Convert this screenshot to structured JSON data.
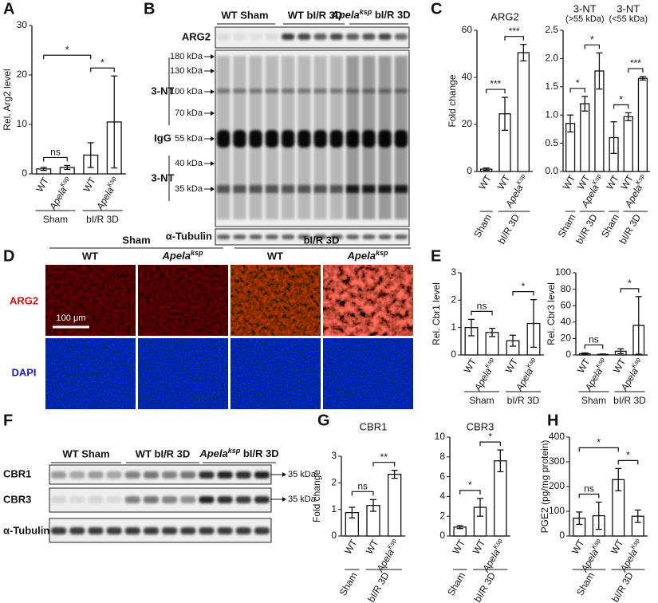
{
  "panel_letters": [
    "A",
    "B",
    "C",
    "D",
    "E",
    "F",
    "G",
    "H"
  ],
  "chart_data": [
    {
      "type": "bar",
      "y_label": "Rel. Arg2 level",
      "categories": [
        "WT",
        "Apela",
        "WT",
        "Apela"
      ],
      "category_superscripts": [
        null,
        "Ksp",
        null,
        "Ksp"
      ],
      "groups": [
        {
          "label": "Sham",
          "from": 0,
          "to": 1
        },
        {
          "label": "bI/R 3D",
          "from": 2,
          "to": 3
        }
      ],
      "values": [
        1.0,
        1.3,
        3.8,
        10.5
      ],
      "errors": [
        0.3,
        0.4,
        2.5,
        9.3
      ],
      "ylim": [
        0,
        30
      ],
      "yticks": [
        0,
        10,
        20,
        30
      ],
      "comparisons": [
        {
          "label": "ns",
          "from": 0,
          "to": 1
        },
        {
          "label": "*",
          "from": 2,
          "to": 3
        },
        {
          "label": "*",
          "from": 0,
          "to": 2
        }
      ]
    },
    {
      "type": "bar",
      "title": "ARG2",
      "y_label": "Fold change",
      "categories": [
        "WT",
        "WT",
        "Apela"
      ],
      "category_superscripts": [
        null,
        null,
        "Ksp"
      ],
      "groups": [
        {
          "label": "Sham",
          "from": 0,
          "to": 0
        },
        {
          "label": "bI/R 3D",
          "from": 1,
          "to": 2
        }
      ],
      "values": [
        1.0,
        24.5,
        50.5
      ],
      "errors": [
        0.5,
        7,
        3.5
      ],
      "ylim": [
        0,
        60
      ],
      "yticks": [
        0,
        20,
        40,
        60
      ],
      "comparisons": [
        {
          "label": "***",
          "from": 0,
          "to": 1
        },
        {
          "label": "***",
          "from": 1,
          "to": 2
        }
      ]
    },
    {
      "type": "bar",
      "section_titles": [
        {
          "lines": [
            "3-NT",
            "(>55 kDa)"
          ],
          "from": 0,
          "to": 2
        },
        {
          "lines": [
            "3-NT",
            "(<55 kDa)"
          ],
          "from": 3,
          "to": 5
        }
      ],
      "categories": [
        "WT",
        "WT",
        "Apela",
        "WT",
        "WT",
        "Apela"
      ],
      "category_superscripts": [
        null,
        null,
        "Ksp",
        null,
        null,
        "Ksp"
      ],
      "groups": [
        {
          "label": "Sham",
          "from": 0,
          "to": 0
        },
        {
          "label": "bI/R 3D",
          "from": 1,
          "to": 2
        },
        {
          "label": "Sham",
          "from": 3,
          "to": 3
        },
        {
          "label": "bI/R 3D",
          "from": 4,
          "to": 5
        }
      ],
      "values": [
        0.85,
        1.2,
        1.78,
        0.6,
        0.97,
        1.65
      ],
      "errors": [
        0.15,
        0.13,
        0.32,
        0.28,
        0.07,
        0.03
      ],
      "ylim": [
        0,
        2.5
      ],
      "yticks": [
        {
          "value": 0,
          "label": "0.0"
        },
        0.5,
        {
          "value": 1,
          "label": "1.0"
        },
        1.5,
        {
          "value": 2,
          "label": "2.0"
        },
        2.5
      ],
      "comparisons": [
        {
          "label": "*",
          "from": 0,
          "to": 1
        },
        {
          "label": "*",
          "from": 1,
          "to": 2
        },
        {
          "label": "*",
          "from": 3,
          "to": 4
        },
        {
          "label": "***",
          "from": 4,
          "to": 5
        }
      ]
    },
    {
      "type": "bar",
      "y_label": "Rel. Cbr1 level",
      "categories": [
        "WT",
        "Apela",
        "WT",
        "Apela"
      ],
      "category_superscripts": [
        null,
        "Ksp",
        null,
        "Ksp"
      ],
      "groups": [
        {
          "label": "Sham",
          "from": 0,
          "to": 1
        },
        {
          "label": "bI/R 3D",
          "from": 2,
          "to": 3
        }
      ],
      "values": [
        1.0,
        0.82,
        0.52,
        1.15
      ],
      "errors": [
        0.3,
        0.15,
        0.2,
        0.87
      ],
      "ylim": [
        0,
        3
      ],
      "yticks": [
        0,
        1,
        2,
        3
      ],
      "comparisons": [
        {
          "label": "ns",
          "from": 0,
          "to": 1
        },
        {
          "label": "*",
          "from": 2,
          "to": 3
        }
      ]
    },
    {
      "type": "bar",
      "y_label": "Rel. Cbr3 level",
      "categories": [
        "WT",
        "Apela",
        "WT",
        "Apela"
      ],
      "category_superscripts": [
        null,
        "Ksp",
        null,
        "Ksp"
      ],
      "groups": [
        {
          "label": "Sham",
          "from": 0,
          "to": 1
        },
        {
          "label": "bI/R 3D",
          "from": 2,
          "to": 3
        }
      ],
      "values": [
        1.5,
        0.7,
        4.5,
        36
      ],
      "errors": [
        1,
        0.5,
        3,
        35
      ],
      "ylim": [
        0,
        100
      ],
      "yticks": [
        0,
        20,
        40,
        60,
        80,
        100
      ],
      "comparisons": [
        {
          "label": "ns",
          "from": 0,
          "to": 1
        },
        {
          "label": "*",
          "from": 2,
          "to": 3
        }
      ]
    },
    {
      "type": "bar",
      "title": "CBR1",
      "y_label": "Fold change",
      "categories": [
        "WT",
        "WT",
        "Apela"
      ],
      "category_superscripts": [
        null,
        null,
        "Ksp"
      ],
      "groups": [
        {
          "label": "Sham",
          "from": 0,
          "to": 0
        },
        {
          "label": "bI/R 3D",
          "from": 1,
          "to": 2
        }
      ],
      "values": [
        0.88,
        1.15,
        2.32
      ],
      "errors": [
        0.2,
        0.22,
        0.15
      ],
      "ylim": [
        0,
        3
      ],
      "yticks": [
        0,
        1,
        2,
        3
      ],
      "comparisons": [
        {
          "label": "ns",
          "from": 0,
          "to": 1
        },
        {
          "label": "**",
          "from": 1,
          "to": 2
        }
      ]
    },
    {
      "type": "bar",
      "title": "CBR3",
      "categories": [
        "WT",
        "WT",
        "Apela"
      ],
      "category_superscripts": [
        null,
        null,
        "Ksp"
      ],
      "groups": [
        {
          "label": "Sham",
          "from": 0,
          "to": 0
        },
        {
          "label": "bI/R 3D",
          "from": 1,
          "to": 2
        }
      ],
      "values": [
        0.9,
        2.9,
        7.6
      ],
      "errors": [
        0.15,
        0.9,
        1.1
      ],
      "ylim": [
        0,
        10
      ],
      "yticks": [
        0,
        2,
        4,
        6,
        8,
        10
      ],
      "comparisons": [
        {
          "label": "*",
          "from": 0,
          "to": 1
        },
        {
          "label": "*",
          "from": 1,
          "to": 2
        }
      ]
    },
    {
      "type": "bar",
      "y_label": "PGE2 (pg/mg protein)",
      "categories": [
        "WT",
        "Apela",
        "WT",
        "Apela"
      ],
      "category_superscripts": [
        null,
        "Ksp",
        null,
        "Ksp"
      ],
      "groups": [
        {
          "label": "Sham",
          "from": 0,
          "to": 1
        },
        {
          "label": "bI/R 3D",
          "from": 2,
          "to": 3
        }
      ],
      "values": [
        72,
        82,
        228,
        80
      ],
      "errors": [
        25,
        55,
        45,
        25
      ],
      "ylim": [
        0,
        400
      ],
      "yticks": [
        0,
        100,
        200,
        300,
        400
      ],
      "comparisons": [
        {
          "label": "ns",
          "from": 0,
          "to": 1
        },
        {
          "label": "*",
          "from": 2,
          "to": 3
        },
        {
          "label": "*",
          "from": 0,
          "to": 2
        }
      ]
    }
  ],
  "blot_b": {
    "lane_groups": [
      {
        "text": "WT Sham"
      },
      {
        "text": "WT bI/R 3D"
      },
      {
        "italic": "Apela",
        "sup": "ksp",
        "text": " bI/R 3D"
      }
    ],
    "rows": {
      "arg2": "ARG2",
      "nt_high": "3-NT",
      "igg": "IgG",
      "nt_low": "3-NT",
      "tubulin": "α-Tubulin"
    },
    "markers": [
      "180 kDa",
      "130 kDa",
      "100 kDa",
      "70 kDa",
      "55 kDa",
      "40 kDa",
      "35 kDa"
    ]
  },
  "micrograph_d": {
    "groups": [
      "Sham",
      "bI/R 3D"
    ],
    "columns": [
      {
        "text": "WT"
      },
      {
        "italic": "Apela",
        "sup": "ksp"
      },
      {
        "text": "WT"
      },
      {
        "italic": "Apela",
        "sup": "ksp"
      }
    ],
    "rows": [
      "ARG2",
      "DAPI"
    ],
    "scale_bar": "100 μm"
  },
  "blot_f": {
    "lane_groups": [
      {
        "text": "WT Sham"
      },
      {
        "text": "WT bI/R 3D"
      },
      {
        "italic": "Apela",
        "sup": "ksp",
        "text": " bI/R 3D"
      }
    ],
    "rows": [
      "CBR1",
      "CBR3",
      "α-Tubulin"
    ],
    "markers": [
      "35 kDa",
      "35 kDa"
    ]
  }
}
